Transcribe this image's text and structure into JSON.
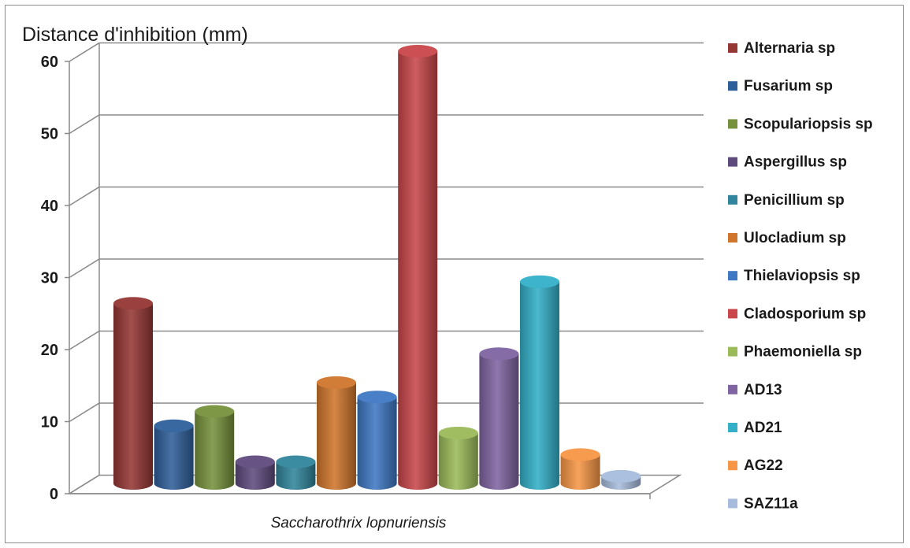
{
  "chart_data": {
    "type": "bar",
    "title": "",
    "ylabel": "Distance d'inhibition (mm)",
    "xlabel": "",
    "categories": [
      "Saccharothrix lopnuriensis"
    ],
    "ylim": [
      0,
      60
    ],
    "yticks": [
      0,
      10,
      20,
      30,
      40,
      50,
      60
    ],
    "grid": true,
    "legend_position": "right",
    "series": [
      {
        "name": "Alternaria sp",
        "values": [
          25
        ],
        "color": "#953735"
      },
      {
        "name": "Fusarium sp",
        "values": [
          8
        ],
        "color": "#2f5f9a"
      },
      {
        "name": "Scopulariopsis sp",
        "values": [
          10
        ],
        "color": "#76923c"
      },
      {
        "name": "Aspergillus sp",
        "values": [
          3
        ],
        "color": "#5f4a7e"
      },
      {
        "name": "Penicillium sp",
        "values": [
          3
        ],
        "color": "#31859c"
      },
      {
        "name": "Ulocladium sp",
        "values": [
          14
        ],
        "color": "#d0762c"
      },
      {
        "name": "Thielaviopsis sp",
        "values": [
          12
        ],
        "color": "#3f78c3"
      },
      {
        "name": "Cladosporium sp",
        "values": [
          60
        ],
        "color": "#c9474a"
      },
      {
        "name": "Phaemoniella sp",
        "values": [
          7
        ],
        "color": "#9bbb59"
      },
      {
        "name": "AD13",
        "values": [
          18
        ],
        "color": "#8064a2"
      },
      {
        "name": "AD21",
        "values": [
          28
        ],
        "color": "#33b0c8"
      },
      {
        "name": "AG22",
        "values": [
          4
        ],
        "color": "#f79646"
      },
      {
        "name": "SAZ11a",
        "values": [
          1
        ],
        "color": "#a7bcdc"
      }
    ]
  }
}
